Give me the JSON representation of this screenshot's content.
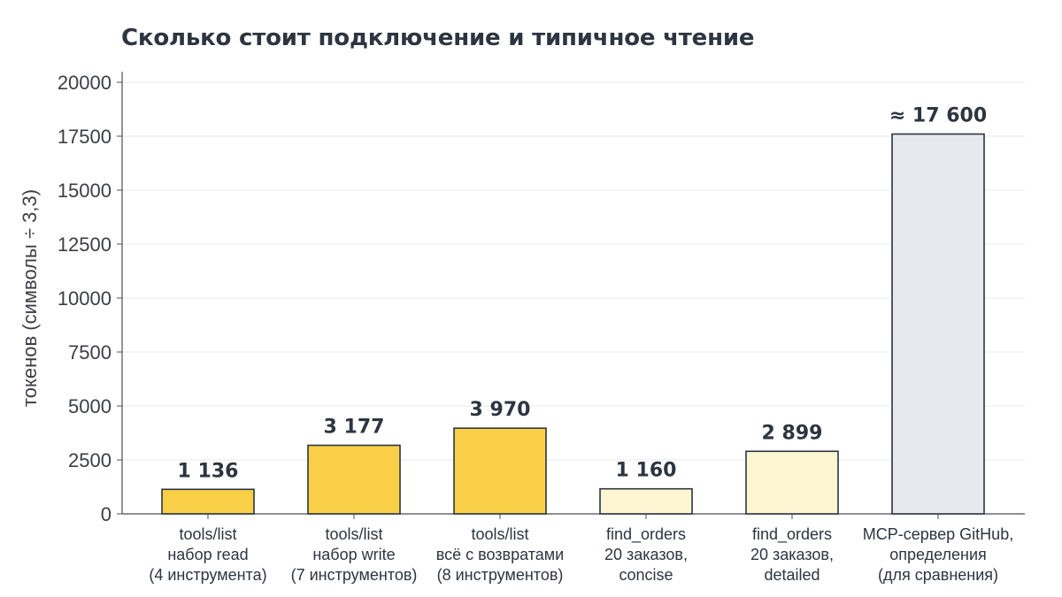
{
  "chart_data": {
    "type": "bar",
    "title": "Сколько стоит подключение и типичное чтение",
    "ylabel": "токенов (символы ÷ 3,3)",
    "xlabel": "",
    "ylim": [
      0,
      20000
    ],
    "yticks": [
      "0",
      "2500",
      "5000",
      "7500",
      "10000",
      "12500",
      "15000",
      "17500",
      "20000"
    ],
    "grid": true,
    "categories": [
      [
        "tools/list",
        "набор read",
        "(4 инструмента)"
      ],
      [
        "tools/list",
        "набор write",
        "(7 инструментов)"
      ],
      [
        "tools/list",
        "всё с возвратами",
        "(8 инструментов)"
      ],
      [
        "find_orders",
        "20 заказов,",
        "concise"
      ],
      [
        "find_orders",
        "20 заказов,",
        "detailed"
      ],
      [
        "MCP-сервер GitHub,",
        "определения",
        "(для сравнения)"
      ]
    ],
    "values": [
      1136,
      3177,
      3970,
      1160,
      2899,
      17600
    ],
    "value_labels": [
      "1 136",
      "3 177",
      "3 970",
      "1 160",
      "2 899",
      "≈ 17 600"
    ],
    "bar_colors": [
      "#f9cf48",
      "#f9cf48",
      "#f9cf48",
      "#fef5d3",
      "#fef5d3",
      "#e7e9ee"
    ]
  }
}
